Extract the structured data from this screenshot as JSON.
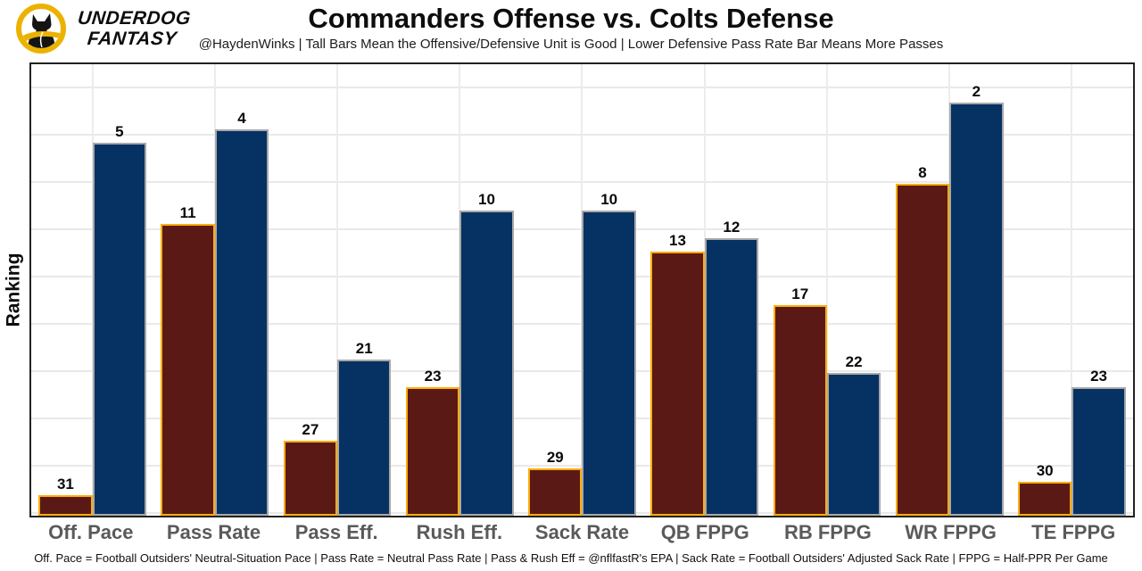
{
  "brand": {
    "line1": "UNDERDOG",
    "line2": "FANTASY"
  },
  "chart_data": {
    "type": "bar",
    "title": "Commanders Offense vs. Colts Defense",
    "subtitle": "@HaydenWinks | Tall Bars Mean the Offensive/Defensive Unit is Good | Lower Defensive Pass Rate Bar Means More Passes",
    "ylabel": "Ranking",
    "xlabel": "",
    "footnote": "Off. Pace = Football Outsiders' Neutral-Situation Pace | Pass Rate = Neutral Pass Rate | Pass & Rush Eff = @nflfastR's EPA | Sack Rate = Football Outsiders' Adjusted Sack Rate | FPPG = Half-PPR Per Game",
    "categories": [
      "Off. Pace",
      "Pass Rate",
      "Pass Eff.",
      "Rush Eff.",
      "Sack Rate",
      "QB FPPG",
      "RB FPPG",
      "WR FPPG",
      "TE FPPG"
    ],
    "series": [
      {
        "name": "Commanders Offense",
        "fill": "#5b1916",
        "border": "#ffae0c",
        "values": [
          31,
          11,
          27,
          23,
          29,
          13,
          17,
          8,
          30
        ]
      },
      {
        "name": "Colts Defense",
        "fill": "#053163",
        "border": "#a8a8a8",
        "values": [
          5,
          4,
          21,
          10,
          10,
          12,
          22,
          2,
          23
        ]
      }
    ],
    "rank_scale": {
      "best": 1,
      "worst": 32,
      "note_taller_bar": "better ranking"
    },
    "grid": true,
    "legend_position": "none",
    "colors": {
      "grid": "#e9e9e9",
      "plot_border": "#222222",
      "xlabel_gray": "#5a5a5a",
      "logo_gold": "#ecb200"
    }
  }
}
